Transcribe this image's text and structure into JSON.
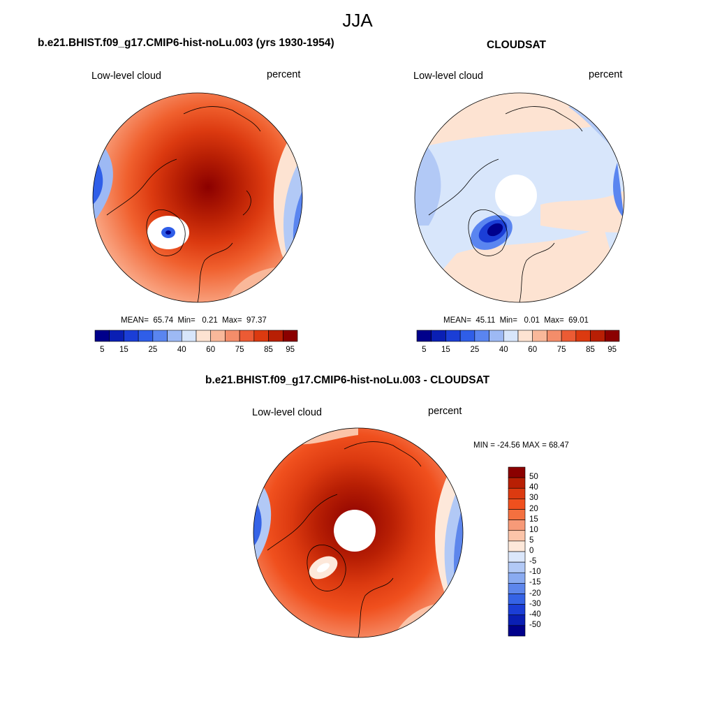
{
  "figure": {
    "title": "JJA"
  },
  "panels": [
    {
      "id": "model",
      "title": "b.e21.BHIST.f09_g17.CMIP6-hist-noLu.003 (yrs 1930-1954)",
      "left_label": "Low-level cloud",
      "right_label": "percent",
      "stats": {
        "mean_label": "MEAN=",
        "mean": "65.74",
        "min_label": "Min=",
        "min": "0.21",
        "max_label": "Max=",
        "max": "97.37"
      },
      "colorbar_ticks": [
        "5",
        "15",
        "25",
        "40",
        "60",
        "75",
        "85",
        "95"
      ]
    },
    {
      "id": "obs",
      "title": "CLOUDSAT",
      "left_label": "Low-level cloud",
      "right_label": "percent",
      "stats": {
        "mean_label": "MEAN=",
        "mean": "45.11",
        "min_label": "Min=",
        "min": "0.01",
        "max_label": "Max=",
        "max": "69.01"
      },
      "colorbar_ticks": [
        "5",
        "15",
        "25",
        "40",
        "60",
        "75",
        "85",
        "95"
      ]
    },
    {
      "id": "diff",
      "title": "b.e21.BHIST.f09_g17.CMIP6-hist-noLu.003 - CLOUDSAT",
      "left_label": "Low-level cloud",
      "right_label": "percent",
      "stats_line": "MIN = -24.56 MAX =  68.47",
      "colorbar_ticks": [
        "50",
        "40",
        "30",
        "20",
        "15",
        "10",
        "5",
        "0",
        "-5",
        "-10",
        "-15",
        "-20",
        "-30",
        "-40",
        "-50"
      ]
    }
  ],
  "colors": {
    "pos_scale": [
      "#00008b",
      "#0a1fb4",
      "#1b3ed6",
      "#2f5ee8",
      "#5a85f0",
      "#9db9f4",
      "#d8e6fb",
      "#fde3d2",
      "#f9b89a",
      "#f48d6a",
      "#ec5b34",
      "#dc3a10",
      "#b81f04",
      "#8b0000"
    ],
    "diff_scale": [
      "#8b0000",
      "#b81f04",
      "#dc3a10",
      "#f0501e",
      "#f4703f",
      "#f79a78",
      "#fbc4a9",
      "#fde8da",
      "#dbe7fb",
      "#b2c9f6",
      "#8aabf1",
      "#5d86ec",
      "#3563e6",
      "#1b3ed6",
      "#0a1fb4",
      "#00008b"
    ]
  }
}
